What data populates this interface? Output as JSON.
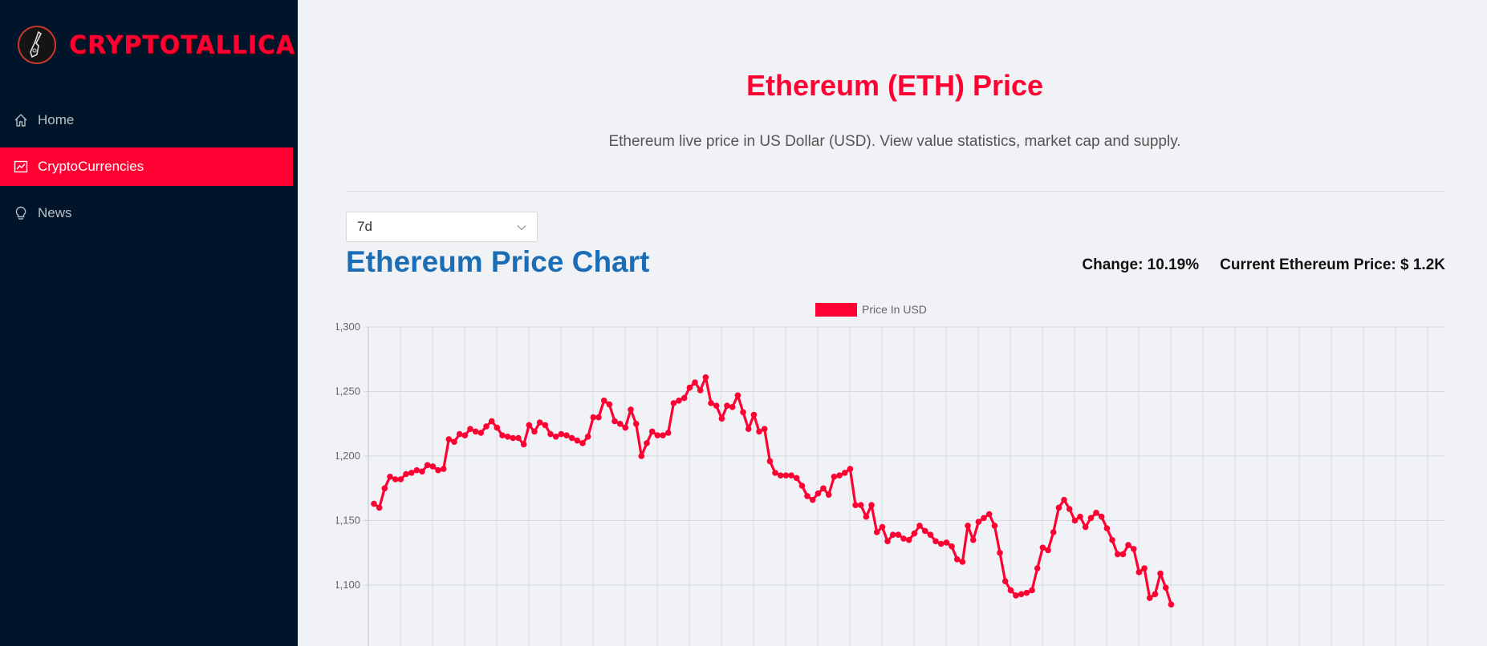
{
  "app": {
    "brand": "CRYPTOTALLICA"
  },
  "sidebar": {
    "items": [
      {
        "label": "Home",
        "icon": "home-icon",
        "active": false
      },
      {
        "label": "CryptoCurrencies",
        "icon": "chart-line-icon",
        "active": true
      },
      {
        "label": "News",
        "icon": "bulb-icon",
        "active": false
      }
    ]
  },
  "header": {
    "title": "Ethereum (ETH) Price",
    "subtitle": "Ethereum live price in US Dollar (USD). View value statistics, market cap and supply."
  },
  "controls": {
    "period": "7d"
  },
  "chart_section": {
    "title": "Ethereum Price Chart",
    "change": "Change: 10.19%",
    "current_price": "Current Ethereum Price: $ 1.2K"
  },
  "colors": {
    "accent": "#ff0033",
    "sidebar": "#001529",
    "chart_title": "#1b6eb5"
  },
  "chart_data": {
    "type": "line",
    "legend": "Price In USD",
    "legend_position": "top",
    "grid": true,
    "ylim": [
      1100,
      1300
    ],
    "yticks": [
      1100,
      1150,
      1200,
      1250,
      1300
    ],
    "y_tick_labels": [
      "1,100",
      "1,150",
      "1,200",
      "1,250",
      "1,300"
    ],
    "series": [
      {
        "name": "Price In USD",
        "values": [
          1163,
          1160,
          1175,
          1184,
          1182,
          1182,
          1186,
          1187,
          1189,
          1188,
          1193,
          1192,
          1189,
          1190,
          1213,
          1211,
          1217,
          1216,
          1221,
          1219,
          1218,
          1223,
          1227,
          1222,
          1216,
          1215,
          1214,
          1214,
          1209,
          1224,
          1219,
          1226,
          1224,
          1217,
          1215,
          1217,
          1216,
          1214,
          1212,
          1210,
          1215,
          1230,
          1230,
          1243,
          1240,
          1227,
          1225,
          1222,
          1236,
          1225,
          1200,
          1210,
          1219,
          1216,
          1216,
          1218,
          1241,
          1243,
          1245,
          1253,
          1257,
          1251,
          1261,
          1241,
          1239,
          1229,
          1239,
          1238,
          1247,
          1234,
          1221,
          1232,
          1219,
          1221,
          1196,
          1187,
          1185,
          1185,
          1185,
          1183,
          1177,
          1169,
          1166,
          1171,
          1175,
          1170,
          1184,
          1185,
          1187,
          1190,
          1162,
          1162,
          1153,
          1162,
          1141,
          1145,
          1134,
          1139,
          1139,
          1136,
          1135,
          1140,
          1146,
          1142,
          1139,
          1134,
          1132,
          1133,
          1130,
          1120,
          1118,
          1146,
          1135,
          1149,
          1152,
          1155,
          1146,
          1125,
          1103,
          1096,
          1092,
          1093,
          1094,
          1096,
          1113,
          1129,
          1127,
          1141,
          1160,
          1166,
          1159,
          1150,
          1153,
          1145,
          1152,
          1156,
          1153,
          1144,
          1135,
          1124,
          1124,
          1131,
          1128,
          1110,
          1113,
          1090,
          1093,
          1109,
          1098,
          1085
        ]
      }
    ]
  }
}
